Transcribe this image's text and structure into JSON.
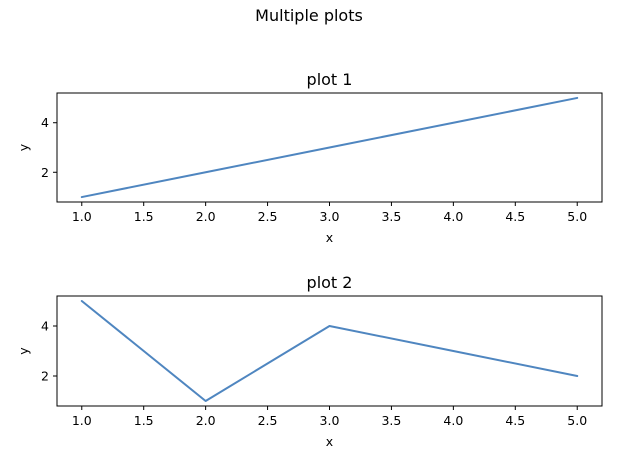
{
  "chart_data": {
    "title": "Multiple plots",
    "subplots": [
      {
        "type": "line",
        "title": "plot 1",
        "xlabel": "x",
        "ylabel": "y",
        "xlim": [
          0.8,
          5.2
        ],
        "ylim": [
          0.8,
          5.2
        ],
        "xticks": [
          1.0,
          1.5,
          2.0,
          2.5,
          3.0,
          3.5,
          4.0,
          4.5,
          5.0
        ],
        "xtick_labels": [
          "1.0",
          "1.5",
          "2.0",
          "2.5",
          "3.0",
          "3.5",
          "4.0",
          "4.5",
          "5.0"
        ],
        "yticks": [
          2,
          4
        ],
        "ytick_labels": [
          "2",
          "4"
        ],
        "grid": false,
        "series": [
          {
            "x": [
              1,
              2,
              3,
              4,
              5
            ],
            "y": [
              1,
              2,
              3,
              4,
              5
            ],
            "color": "#4f86c0"
          }
        ]
      },
      {
        "type": "line",
        "title": "plot 2",
        "xlabel": "x",
        "ylabel": "y",
        "xlim": [
          0.8,
          5.2
        ],
        "ylim": [
          0.8,
          5.2
        ],
        "xticks": [
          1.0,
          1.5,
          2.0,
          2.5,
          3.0,
          3.5,
          4.0,
          4.5,
          5.0
        ],
        "xtick_labels": [
          "1.0",
          "1.5",
          "2.0",
          "2.5",
          "3.0",
          "3.5",
          "4.0",
          "4.5",
          "5.0"
        ],
        "yticks": [
          2,
          4
        ],
        "ytick_labels": [
          "2",
          "4"
        ],
        "grid": false,
        "series": [
          {
            "x": [
              1,
              2,
              3,
              4,
              5
            ],
            "y": [
              5,
              1,
              4,
              3,
              2
            ],
            "color": "#4f86c0"
          }
        ]
      }
    ]
  }
}
